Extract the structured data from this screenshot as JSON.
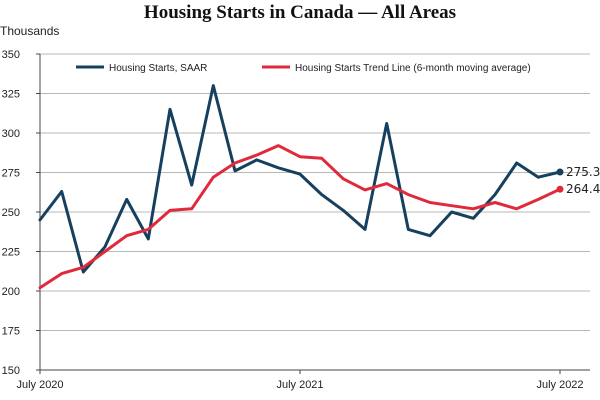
{
  "chart_data": {
    "type": "line",
    "title": "Housing Starts in Canada — All Areas",
    "ylabel": "Thousands",
    "xlabel": "",
    "ylim": [
      150,
      350
    ],
    "yticks": [
      150,
      175,
      200,
      225,
      250,
      275,
      300,
      325,
      350
    ],
    "grid": "horizontal",
    "legend_position": "top",
    "x": [
      "Jul 2020",
      "Aug 2020",
      "Sep 2020",
      "Oct 2020",
      "Nov 2020",
      "Dec 2020",
      "Jan 2021",
      "Feb 2021",
      "Mar 2021",
      "Apr 2021",
      "May 2021",
      "Jun 2021",
      "Jul 2021",
      "Aug 2021",
      "Sep 2021",
      "Oct 2021",
      "Nov 2021",
      "Dec 2021",
      "Jan 2022",
      "Feb 2022",
      "Mar 2022",
      "Apr 2022",
      "May 2022",
      "Jun 2022",
      "Jul 2022"
    ],
    "xtick_labels": [
      {
        "index": 0,
        "label": "July 2020"
      },
      {
        "index": 12,
        "label": "July 2021"
      },
      {
        "index": 24,
        "label": "July 2022"
      }
    ],
    "series": [
      {
        "name": "Housing Starts, SAAR",
        "color": "#17405e",
        "values": [
          245,
          263,
          212,
          228,
          258,
          233,
          315,
          267,
          330,
          276,
          283,
          278,
          274,
          261,
          251,
          239,
          306,
          239,
          235,
          250,
          246,
          261,
          281,
          272,
          275.329
        ],
        "end_label": "275.329"
      },
      {
        "name": "Housing Starts Trend Line (6-month moving average)",
        "color": "#e02a3c",
        "values": [
          202,
          211,
          215,
          225,
          235,
          239,
          251,
          252,
          272,
          281,
          286,
          292,
          285,
          284,
          271,
          264,
          268,
          261,
          256,
          254,
          252,
          256,
          252,
          258,
          264.426
        ],
        "end_label": "264.426"
      }
    ]
  }
}
